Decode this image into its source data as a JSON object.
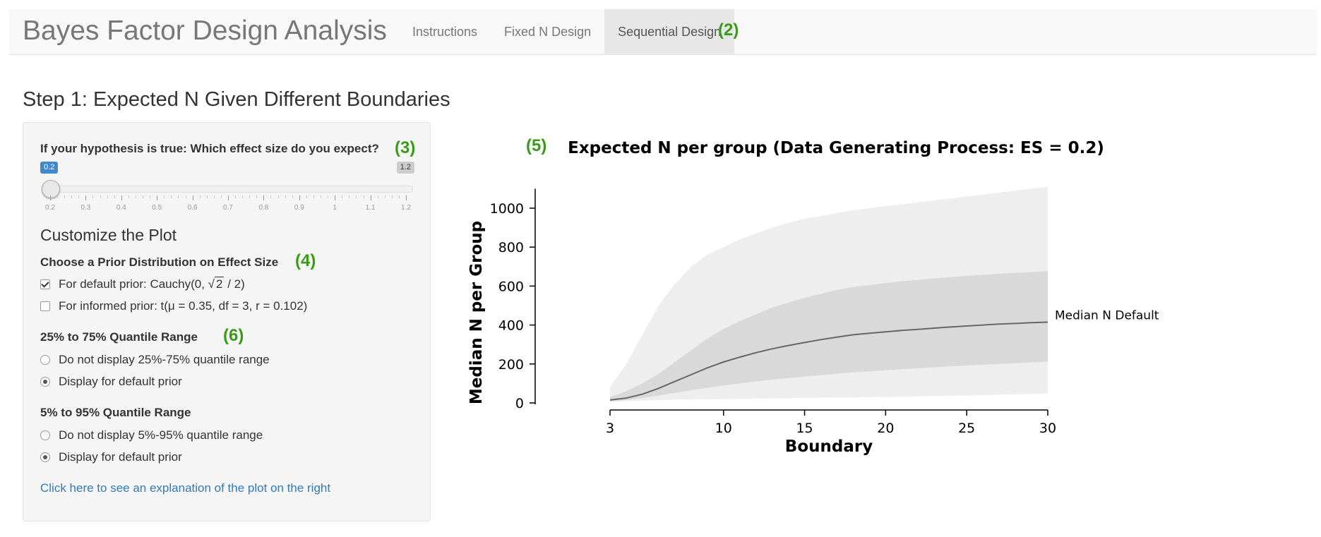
{
  "app": {
    "title": "Bayes Factor Design Analysis"
  },
  "nav": {
    "items": [
      {
        "label": "Instructions"
      },
      {
        "label": "Fixed N Design"
      },
      {
        "label": "Sequential Design"
      }
    ],
    "active": 2
  },
  "annotations": {
    "a2": "(2)",
    "a3": "(3)",
    "a4": "(4)",
    "a5": "(5)",
    "a6": "(6)"
  },
  "step_title": "Step 1: Expected N Given Different Boundaries",
  "effect_size": {
    "label": "If your hypothesis is true: Which effect size do you expect?",
    "value": "0.2",
    "max_label": "1.2",
    "min": 0.2,
    "max": 1.2,
    "current": 0.2,
    "ticks": [
      "0.2",
      "0.3",
      "0.4",
      "0.5",
      "0.6",
      "0.7",
      "0.8",
      "0.9",
      "1",
      "1.1",
      "1.2"
    ]
  },
  "customize": {
    "title": "Customize the Plot",
    "prior_label": "Choose a Prior Distribution on Effect Size",
    "default_prior": {
      "before": "For default prior: Cauchy(0, ",
      "sqrt": "√",
      "radicand": "2",
      "after": " / 2)",
      "checked": true
    },
    "informed_prior": {
      "label": "For informed prior: t(μ = 0.35, df = 3, r = 0.102)",
      "checked": false
    },
    "q25_label": "25% to 75% Quantile Range",
    "q25_options": [
      {
        "label": "Do not display 25%-75% quantile range",
        "checked": false
      },
      {
        "label": "Display for default prior",
        "checked": true
      }
    ],
    "q5_label": "5% to 95% Quantile Range",
    "q5_options": [
      {
        "label": "Do not display 5%-95% quantile range",
        "checked": false
      },
      {
        "label": "Display for default prior",
        "checked": true
      }
    ],
    "explain_link": "Click here to see an explanation of the plot on the right"
  },
  "chart_data": {
    "type": "area",
    "title": "Expected N per group (Data Generating Process: ES = 0.2)",
    "xlabel": "Boundary",
    "ylabel": "Median N per Group",
    "xlim": [
      3,
      30
    ],
    "ylim": [
      0,
      1100
    ],
    "xticks": [
      3,
      10,
      15,
      20,
      25,
      30
    ],
    "yticks": [
      0,
      200,
      400,
      600,
      800,
      1000
    ],
    "x": [
      3,
      4,
      5,
      6,
      7,
      8,
      9,
      10,
      11,
      12,
      13,
      14,
      15,
      16,
      17,
      18,
      19,
      20,
      21,
      22,
      23,
      24,
      25,
      26,
      27,
      28,
      29,
      30
    ],
    "median": [
      15,
      25,
      45,
      75,
      110,
      145,
      180,
      210,
      235,
      258,
      278,
      295,
      310,
      325,
      338,
      350,
      358,
      365,
      372,
      378,
      384,
      390,
      395,
      400,
      405,
      408,
      412,
      415
    ],
    "q25": [
      10,
      15,
      25,
      38,
      52,
      65,
      78,
      90,
      100,
      110,
      120,
      128,
      135,
      142,
      150,
      157,
      162,
      168,
      173,
      178,
      183,
      188,
      192,
      196,
      200,
      204,
      208,
      212
    ],
    "q75": [
      30,
      60,
      100,
      150,
      210,
      270,
      330,
      380,
      420,
      455,
      490,
      515,
      540,
      560,
      580,
      595,
      605,
      615,
      625,
      632,
      640,
      646,
      652,
      658,
      663,
      668,
      672,
      676
    ],
    "q5": [
      5,
      8,
      12,
      15,
      17,
      18,
      19,
      20,
      21,
      22,
      23,
      24,
      25,
      26,
      27,
      28,
      30,
      31,
      32,
      34,
      35,
      37,
      38,
      40,
      42,
      44,
      46,
      48
    ],
    "q95": [
      80,
      200,
      350,
      500,
      610,
      700,
      760,
      800,
      840,
      870,
      900,
      925,
      945,
      960,
      975,
      990,
      1000,
      1010,
      1020,
      1030,
      1040,
      1050,
      1060,
      1070,
      1080,
      1090,
      1100,
      1110
    ],
    "series_label": "Median N Default",
    "colors": {
      "band_outer": "#eeeeee",
      "band_inner": "#d9d9d9",
      "line": "#666666"
    }
  }
}
